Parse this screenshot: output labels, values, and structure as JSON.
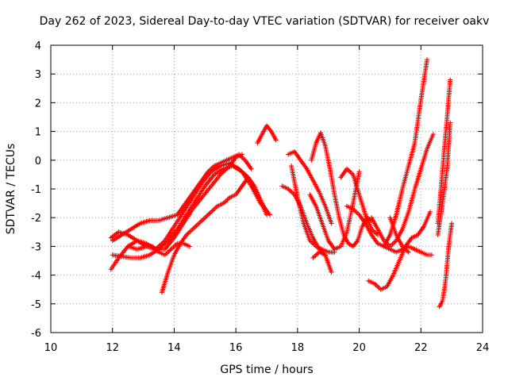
{
  "chart_data": {
    "type": "scatter",
    "title": "Day 262 of 2023, Sidereal Day-to-day VTEC variation (SDTVAR) for receiver oakv",
    "xlabel": "GPS time / hours",
    "ylabel": "SDTVAR / TECUs",
    "xlim": [
      10,
      24
    ],
    "ylim": [
      -6,
      4
    ],
    "x_ticks": [
      "10",
      "12",
      "14",
      "16",
      "18",
      "20",
      "22",
      "24"
    ],
    "y_ticks": [
      "-6",
      "-5",
      "-4",
      "-3",
      "-2",
      "-1",
      "0",
      "1",
      "2",
      "3",
      "4"
    ],
    "grid": true,
    "marker": "+",
    "color": "#ff0000",
    "series": [
      {
        "x": [
          11.95,
          12.2,
          12.5,
          12.8,
          13.1,
          13.4,
          13.7,
          14.0,
          14.3,
          14.6,
          14.9,
          15.2,
          15.5,
          15.8,
          16.0,
          16.2
        ],
        "y": [
          -3.8,
          -3.4,
          -3.0,
          -2.8,
          -2.9,
          -3.1,
          -3.1,
          -2.7,
          -2.2,
          -1.7,
          -1.3,
          -0.9,
          -0.5,
          -0.2,
          0.1,
          0.2
        ]
      },
      {
        "x": [
          11.95,
          12.2,
          12.5,
          12.8,
          13.1,
          13.4,
          13.7,
          14.0,
          14.3,
          14.6,
          14.9,
          15.2,
          15.5,
          15.8,
          16.1,
          16.4,
          16.7,
          17.0
        ],
        "y": [
          -2.7,
          -2.5,
          -2.6,
          -2.8,
          -3.0,
          -3.1,
          -2.8,
          -2.3,
          -1.8,
          -1.3,
          -0.8,
          -0.4,
          -0.2,
          -0.1,
          -0.3,
          -0.6,
          -1.2,
          -1.8
        ]
      },
      {
        "x": [
          12.0,
          12.3,
          12.6,
          12.9,
          13.2,
          13.5,
          13.8,
          14.1,
          14.4,
          14.7,
          15.0,
          15.3,
          15.6,
          15.9,
          16.2,
          16.5,
          16.8,
          17.1
        ],
        "y": [
          -3.3,
          -3.35,
          -3.4,
          -3.4,
          -3.3,
          -3.1,
          -2.8,
          -2.4,
          -1.9,
          -1.4,
          -0.9,
          -0.5,
          -0.3,
          -0.2,
          -0.4,
          -0.9,
          -1.5,
          -1.9
        ]
      },
      {
        "x": [
          12.0,
          12.3,
          12.6,
          12.9,
          13.2,
          13.5,
          13.8,
          14.1,
          14.3,
          14.5,
          14.7,
          14.9,
          15.1,
          15.3,
          15.5,
          15.7,
          15.9,
          16.1,
          16.3,
          16.5
        ],
        "y": [
          -2.8,
          -2.6,
          -2.4,
          -2.2,
          -2.1,
          -2.1,
          -2.0,
          -1.9,
          -1.6,
          -1.3,
          -1.0,
          -0.7,
          -0.4,
          -0.2,
          -0.1,
          0.0,
          0.1,
          0.2,
          0.0,
          -0.3
        ]
      },
      {
        "x": [
          12.5,
          12.8,
          13.1,
          13.3,
          13.5,
          13.7,
          13.9,
          14.1,
          14.3,
          14.5
        ],
        "y": [
          -3.0,
          -3.1,
          -3.0,
          -3.0,
          -3.2,
          -3.3,
          -3.1,
          -2.9,
          -2.9,
          -3.0
        ]
      },
      {
        "x": [
          13.6,
          13.8,
          14.0,
          14.2,
          14.4,
          14.6,
          14.8,
          15.0,
          15.2,
          15.4,
          15.6,
          15.8,
          16.0,
          16.2,
          16.4,
          16.6,
          16.8,
          17.0
        ],
        "y": [
          -4.6,
          -3.9,
          -3.3,
          -2.9,
          -2.6,
          -2.4,
          -2.2,
          -2.0,
          -1.8,
          -1.6,
          -1.5,
          -1.3,
          -1.2,
          -0.9,
          -0.6,
          -0.9,
          -1.4,
          -1.9
        ]
      },
      {
        "x": [
          16.7,
          16.85,
          17.0,
          17.15,
          17.3
        ],
        "y": [
          0.6,
          0.9,
          1.2,
          1.0,
          0.7
        ]
      },
      {
        "x": [
          17.5,
          17.7,
          17.9,
          18.1,
          18.3,
          18.5,
          18.7,
          18.9
        ],
        "y": [
          -0.9,
          -1.0,
          -1.2,
          -1.6,
          -2.2,
          -2.7,
          -3.1,
          -3.3
        ]
      },
      {
        "x": [
          17.7,
          17.9,
          18.1,
          18.3,
          18.5,
          18.7,
          18.9,
          19.1
        ],
        "y": [
          0.2,
          0.3,
          0.0,
          -0.3,
          -0.7,
          -1.1,
          -1.6,
          -2.2
        ]
      },
      {
        "x": [
          17.8,
          18.0,
          18.2,
          18.4,
          18.6,
          18.8,
          19.0,
          19.2
        ],
        "y": [
          -0.2,
          -1.3,
          -2.2,
          -2.8,
          -3.0,
          -3.1,
          -3.2,
          -3.2
        ]
      },
      {
        "x": [
          18.45,
          18.6,
          18.75,
          18.9,
          19.05,
          19.2,
          19.35,
          19.5,
          19.65,
          19.8,
          19.95,
          20.1,
          20.25,
          20.4
        ],
        "y": [
          0.0,
          0.6,
          0.95,
          0.5,
          -0.3,
          -1.2,
          -2.0,
          -2.6,
          -2.9,
          -3.0,
          -2.8,
          -2.3,
          -2.0,
          -2.1
        ]
      },
      {
        "x": [
          18.4,
          18.6,
          18.8,
          19.0,
          19.2,
          19.4,
          19.6,
          19.8,
          20.0
        ],
        "y": [
          -1.2,
          -1.6,
          -2.2,
          -2.8,
          -3.1,
          -3.0,
          -2.5,
          -1.5,
          -0.4
        ]
      },
      {
        "x": [
          19.4,
          19.6,
          19.8,
          20.0,
          20.2,
          20.4,
          20.6
        ],
        "y": [
          -0.6,
          -0.3,
          -0.5,
          -1.2,
          -1.9,
          -2.4,
          -2.6
        ]
      },
      {
        "x": [
          18.5,
          18.7,
          18.9,
          19.0,
          19.1
        ],
        "y": [
          -3.4,
          -3.2,
          -3.3,
          -3.6,
          -3.9
        ]
      },
      {
        "x": [
          19.6,
          19.8,
          20.0,
          20.2,
          20.4,
          20.6,
          20.8,
          21.0,
          21.2,
          21.4,
          21.6,
          21.8,
          22.0,
          22.2
        ],
        "y": [
          -1.6,
          -1.7,
          -1.9,
          -2.2,
          -2.6,
          -2.9,
          -3.0,
          -2.6,
          -1.9,
          -1.0,
          -0.2,
          0.6,
          2.1,
          3.5
        ]
      },
      {
        "x": [
          20.4,
          20.6,
          20.8,
          21.0,
          21.2,
          21.4,
          21.6,
          21.8,
          22.0,
          22.2,
          22.4
        ],
        "y": [
          -2.0,
          -2.4,
          -2.8,
          -3.0,
          -2.8,
          -2.4,
          -1.8,
          -1.0,
          -0.3,
          0.4,
          0.9
        ]
      },
      {
        "x": [
          20.3,
          20.5,
          20.7,
          20.9,
          21.1,
          21.3,
          21.5,
          21.7,
          21.9,
          22.1,
          22.3
        ],
        "y": [
          -4.2,
          -4.3,
          -4.5,
          -4.4,
          -4.0,
          -3.5,
          -3.0,
          -2.7,
          -2.6,
          -2.3,
          -1.8
        ]
      },
      {
        "x": [
          20.8,
          21.0,
          21.2,
          21.4,
          21.6,
          21.8,
          22.0,
          22.2,
          22.35
        ],
        "y": [
          -3.0,
          -3.1,
          -3.2,
          -3.1,
          -3.0,
          -3.1,
          -3.2,
          -3.3,
          -3.3
        ]
      },
      {
        "x": [
          21.0,
          21.2,
          21.4,
          21.6
        ],
        "y": [
          -2.0,
          -2.6,
          -3.0,
          -3.2
        ]
      },
      {
        "x": [
          22.55,
          22.65,
          22.75,
          22.85,
          22.95
        ],
        "y": [
          -2.2,
          -1.0,
          0.3,
          1.5,
          2.8
        ]
      },
      {
        "x": [
          22.55,
          22.7,
          22.85,
          22.95
        ],
        "y": [
          -2.6,
          -1.5,
          -0.3,
          1.3
        ]
      },
      {
        "x": [
          22.6,
          22.7,
          22.8,
          22.9,
          23.0
        ],
        "y": [
          -5.1,
          -4.9,
          -4.2,
          -3.0,
          -2.2
        ]
      }
    ]
  }
}
